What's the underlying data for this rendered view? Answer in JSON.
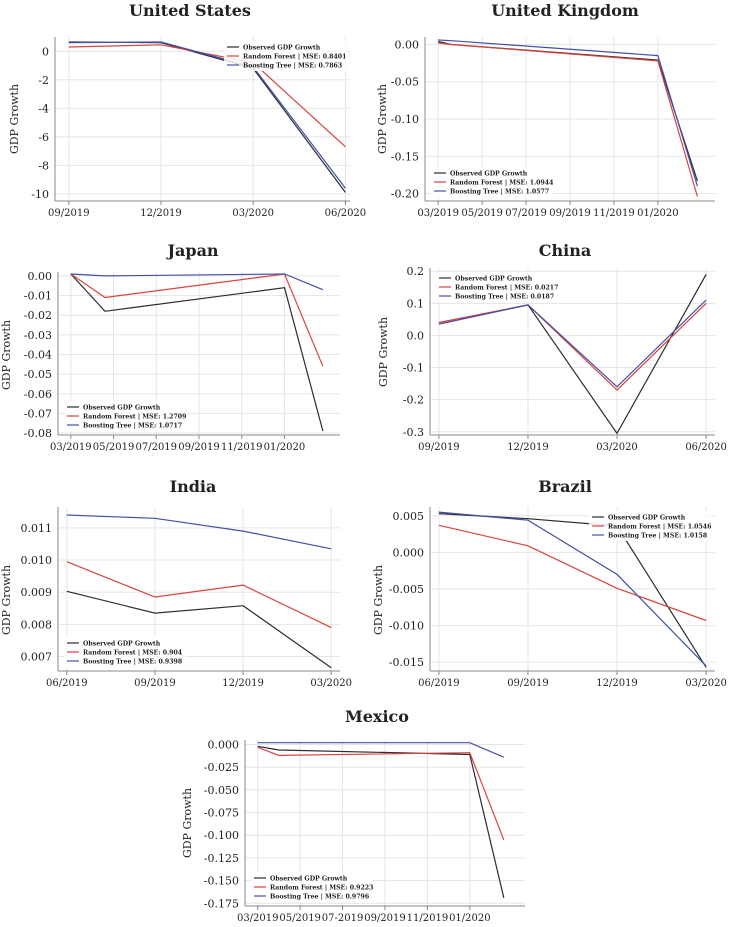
{
  "figure": {
    "ylabel": "GDP Growth"
  },
  "colors": {
    "observed": "#2b2b36",
    "rf": "#d9443c",
    "bt": "#4450a6",
    "grid": "#e5e5e5",
    "axis": "#888888"
  },
  "chart_data": [
    {
      "type": "line",
      "title": "United States",
      "ylabel": "GDP Growth",
      "x": [
        0,
        1,
        2,
        3
      ],
      "xlim": [
        -0.15,
        3.05
      ],
      "x_ticks": [
        "09/2019",
        "12/2019",
        "03/2020",
        "06/2020"
      ],
      "ylim": [
        -10.5,
        1.0
      ],
      "y_ticks": [
        0,
        -2,
        -4,
        -6,
        -8,
        -10
      ],
      "y_tick_labels": [
        "0",
        "-2",
        "-4",
        "-6",
        "-8",
        "-10"
      ],
      "legend": "top-right",
      "series": [
        {
          "name": "Observed GDP Growth",
          "key": "observed",
          "x": [
            0,
            1,
            2,
            3
          ],
          "values": [
            0.65,
            0.6,
            -1.2,
            -9.9
          ]
        },
        {
          "name": "Random Forest | MSE: 0.8401",
          "key": "rf",
          "x": [
            0,
            1,
            2,
            3
          ],
          "values": [
            0.3,
            0.45,
            -0.8,
            -6.7
          ]
        },
        {
          "name": "Boosting Tree | MSE: 0.7863",
          "key": "bt",
          "x": [
            0,
            1,
            2,
            3
          ],
          "values": [
            0.6,
            0.65,
            -1.1,
            -9.6
          ]
        }
      ]
    },
    {
      "type": "line",
      "title": "United Kingdom",
      "ylabel": "GDP Growth",
      "x": [
        0,
        1,
        2,
        3,
        4,
        5,
        6
      ],
      "xlim": [
        -0.3,
        6.3
      ],
      "x_ticks": [
        "03/2019",
        "05/2019",
        "07/2019",
        "09/2019",
        "11/2019",
        "01/2020"
      ],
      "x_tick_pos": [
        0,
        1,
        2,
        3,
        4,
        5
      ],
      "ylim": [
        -0.21,
        0.01
      ],
      "y_ticks": [
        0.0,
        -0.05,
        -0.1,
        -0.15,
        -0.2
      ],
      "y_tick_labels": [
        "0.00",
        "-0.05",
        "-0.10",
        "-0.15",
        "-0.20"
      ],
      "legend": "bottom-left",
      "series": [
        {
          "name": "Observed GDP Growth",
          "key": "observed",
          "x": [
            0,
            0.3,
            5,
            5.9
          ],
          "values": [
            0.004,
            0.0,
            -0.021,
            -0.183
          ]
        },
        {
          "name": "Random Forest | MSE: 1.0944",
          "key": "rf",
          "x": [
            0,
            0.3,
            5,
            5.9
          ],
          "values": [
            0.002,
            0.0,
            -0.022,
            -0.204
          ]
        },
        {
          "name": "Boosting Tree | MSE: 1.0577",
          "key": "bt",
          "x": [
            0,
            0.3,
            5,
            5.9
          ],
          "values": [
            0.006,
            0.005,
            -0.015,
            -0.19
          ]
        }
      ]
    },
    {
      "type": "line",
      "title": "Japan",
      "ylabel": "GDP Growth",
      "x": [
        0,
        1,
        2,
        3,
        4,
        5,
        6
      ],
      "xlim": [
        -0.3,
        6.3
      ],
      "x_ticks": [
        "03/2019",
        "05/2019",
        "07/2019",
        "09/2019",
        "11/2019",
        "01/2020"
      ],
      "x_tick_pos": [
        0,
        1,
        2,
        3,
        4,
        5
      ],
      "ylim": [
        -0.081,
        0.002
      ],
      "y_ticks": [
        0.0,
        -0.01,
        -0.02,
        -0.03,
        -0.04,
        -0.05,
        -0.06,
        -0.07,
        -0.08
      ],
      "y_tick_labels": [
        "0.00",
        "-0.01",
        "-0.02",
        "-0.03",
        "-0.04",
        "-0.05",
        "-0.06",
        "-0.07",
        "-0.08"
      ],
      "legend": "bottom-left",
      "series": [
        {
          "name": "Observed GDP Growth",
          "key": "observed",
          "x": [
            0,
            0.8,
            5,
            5.9
          ],
          "values": [
            0.001,
            -0.018,
            -0.006,
            -0.079
          ]
        },
        {
          "name": "Random Forest | MSE: 1.2709",
          "key": "rf",
          "x": [
            0,
            0.8,
            5,
            5.9
          ],
          "values": [
            0.001,
            -0.011,
            0.001,
            -0.046
          ]
        },
        {
          "name": "Boosting Tree | MSE: 1.0717",
          "key": "bt",
          "x": [
            0,
            0.8,
            5,
            5.9
          ],
          "values": [
            0.001,
            0.0,
            0.001,
            -0.007
          ]
        }
      ]
    },
    {
      "type": "line",
      "title": "China",
      "ylabel": "GDP Growth",
      "x": [
        0,
        1,
        2,
        3
      ],
      "xlim": [
        -0.1,
        3.1
      ],
      "x_ticks": [
        "09/2019",
        "12/2019",
        "03/2020",
        "06/2020"
      ],
      "ylim": [
        -0.31,
        0.21
      ],
      "y_ticks": [
        0.2,
        0.1,
        0.0,
        -0.1,
        -0.2,
        -0.3
      ],
      "y_tick_labels": [
        "0.2",
        "0.1",
        "0.0",
        "-0.1",
        "-0.2",
        "-0.3"
      ],
      "legend": "top-left",
      "series": [
        {
          "name": "Observed GDP Growth",
          "key": "observed",
          "x": [
            0,
            1,
            2,
            3
          ],
          "values": [
            0.04,
            0.095,
            -0.305,
            0.19
          ]
        },
        {
          "name": "Random Forest | MSE: 0.0217",
          "key": "rf",
          "x": [
            0,
            1,
            2,
            3
          ],
          "values": [
            0.04,
            0.095,
            -0.17,
            0.1
          ]
        },
        {
          "name": "Boosting Tree | MSE: 0.0187",
          "key": "bt",
          "x": [
            0,
            1,
            2,
            3
          ],
          "values": [
            0.035,
            0.095,
            -0.16,
            0.11
          ]
        }
      ]
    },
    {
      "type": "line",
      "title": "India",
      "ylabel": "GDP Growth",
      "x": [
        0,
        1,
        2,
        3
      ],
      "xlim": [
        -0.1,
        3.1
      ],
      "x_ticks": [
        "06/2019",
        "09/2019",
        "12/2019",
        "03/2020"
      ],
      "ylim": [
        0.00655,
        0.01165
      ],
      "y_ticks": [
        0.011,
        0.01,
        0.009,
        0.008,
        0.007
      ],
      "y_tick_labels": [
        "0.011",
        "0.010",
        "0.009",
        "0.008",
        "0.007"
      ],
      "legend": "bottom-left",
      "series": [
        {
          "name": "Observed GDP Growth",
          "key": "observed",
          "x": [
            0,
            1,
            2,
            3
          ],
          "values": [
            0.00903,
            0.00835,
            0.00858,
            0.00665
          ]
        },
        {
          "name": "Random Forest | MSE: 0.904",
          "key": "rf",
          "x": [
            0,
            1,
            2,
            3
          ],
          "values": [
            0.00995,
            0.00885,
            0.00922,
            0.0079
          ]
        },
        {
          "name": "Boosting Tree | MSE: 0.9398",
          "key": "bt",
          "x": [
            0,
            1,
            2,
            3
          ],
          "values": [
            0.0114,
            0.0113,
            0.0109,
            0.01035
          ]
        }
      ]
    },
    {
      "type": "line",
      "title": "Brazil",
      "ylabel": "GDP Growth",
      "x": [
        0,
        1,
        2,
        3
      ],
      "xlim": [
        -0.1,
        3.1
      ],
      "x_ticks": [
        "06/2019",
        "09/2019",
        "12/2019",
        "03/2020"
      ],
      "ylim": [
        -0.0162,
        0.0062
      ],
      "y_ticks": [
        0.005,
        0.0,
        -0.005,
        -0.01,
        -0.015
      ],
      "y_tick_labels": [
        "0.005",
        "0.000",
        "-0.005",
        "-0.010",
        "-0.015"
      ],
      "legend": "top-right",
      "series": [
        {
          "name": "Observed GDP Growth",
          "key": "observed",
          "x": [
            0,
            1,
            2,
            3
          ],
          "values": [
            0.0053,
            0.0046,
            0.0036,
            -0.0157
          ]
        },
        {
          "name": "Random Forest | MSE: 1.0546",
          "key": "rf",
          "x": [
            0,
            1,
            2,
            3
          ],
          "values": [
            0.0037,
            0.0009,
            -0.0049,
            -0.0093
          ]
        },
        {
          "name": "Boosting Tree | MSE: 1.0158",
          "key": "bt",
          "x": [
            0,
            1,
            2,
            3
          ],
          "values": [
            0.0055,
            0.0044,
            -0.003,
            -0.0155
          ]
        }
      ]
    },
    {
      "type": "line",
      "title": "Mexico",
      "ylabel": "GDP Growth",
      "x": [
        0,
        1,
        2,
        3,
        4,
        5,
        6
      ],
      "xlim": [
        -0.3,
        6.3
      ],
      "x_ticks": [
        "03/2019",
        "05/2019",
        "07-2019",
        "09/2019",
        "11/2019",
        "01/2020"
      ],
      "x_tick_pos": [
        0,
        1,
        2,
        3,
        4,
        5
      ],
      "ylim": [
        -0.178,
        0.005
      ],
      "y_ticks": [
        0.0,
        -0.025,
        -0.05,
        -0.075,
        -0.1,
        -0.125,
        -0.15,
        -0.175
      ],
      "y_tick_labels": [
        "0.000",
        "-0.025",
        "-0.050",
        "-0.075",
        "-0.100",
        "-0.125",
        "-0.150",
        "-0.175"
      ],
      "legend": "bottom-left",
      "series": [
        {
          "name": "Observed GDP Growth",
          "key": "observed",
          "x": [
            0,
            0.5,
            5,
            5.8
          ],
          "values": [
            -0.002,
            -0.006,
            -0.011,
            -0.169
          ]
        },
        {
          "name": "Random Forest | MSE: 0.9223",
          "key": "rf",
          "x": [
            0,
            0.5,
            5,
            5.8
          ],
          "values": [
            -0.003,
            -0.012,
            -0.009,
            -0.105
          ]
        },
        {
          "name": "Boosting Tree | MSE: 0.9796",
          "key": "bt",
          "x": [
            0,
            0.5,
            5,
            5.8
          ],
          "values": [
            0.002,
            0.002,
            0.002,
            -0.014
          ]
        }
      ]
    }
  ]
}
